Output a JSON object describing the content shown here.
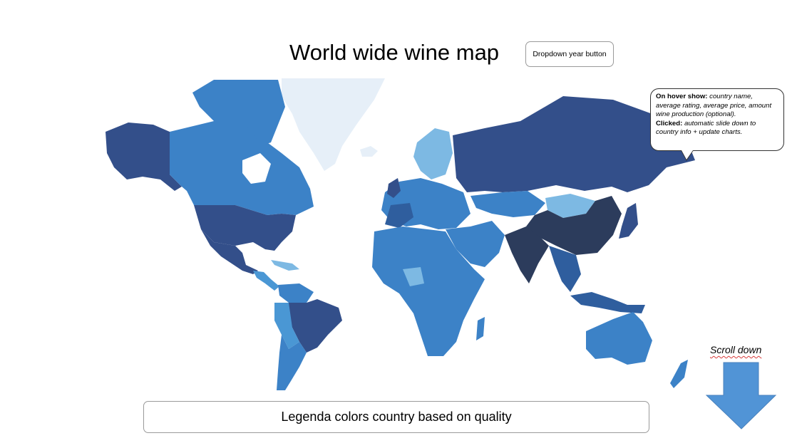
{
  "header": {
    "title": "World wide wine map",
    "dropdown_label": "Dropdown year button"
  },
  "callout": {
    "hover_heading": "On hover show:",
    "hover_text": "country name, average rating, average price, amount wine production (optional).",
    "clicked_heading": "Clicked:",
    "clicked_text": "automatic slide down to country info + update charts."
  },
  "scroll": {
    "label": "Scroll down"
  },
  "legend": {
    "label": "Legenda colors country based on quality"
  },
  "colors": {
    "water": "#ffffff",
    "ice": "#e6eff8",
    "lightest": "#7db9e3",
    "light": "#4a97d4",
    "medium": "#3c82c7",
    "dark": "#2f5e9e",
    "darker": "#334f8a",
    "darkest": "#2c3c5c",
    "arrow": "#5194d6"
  }
}
